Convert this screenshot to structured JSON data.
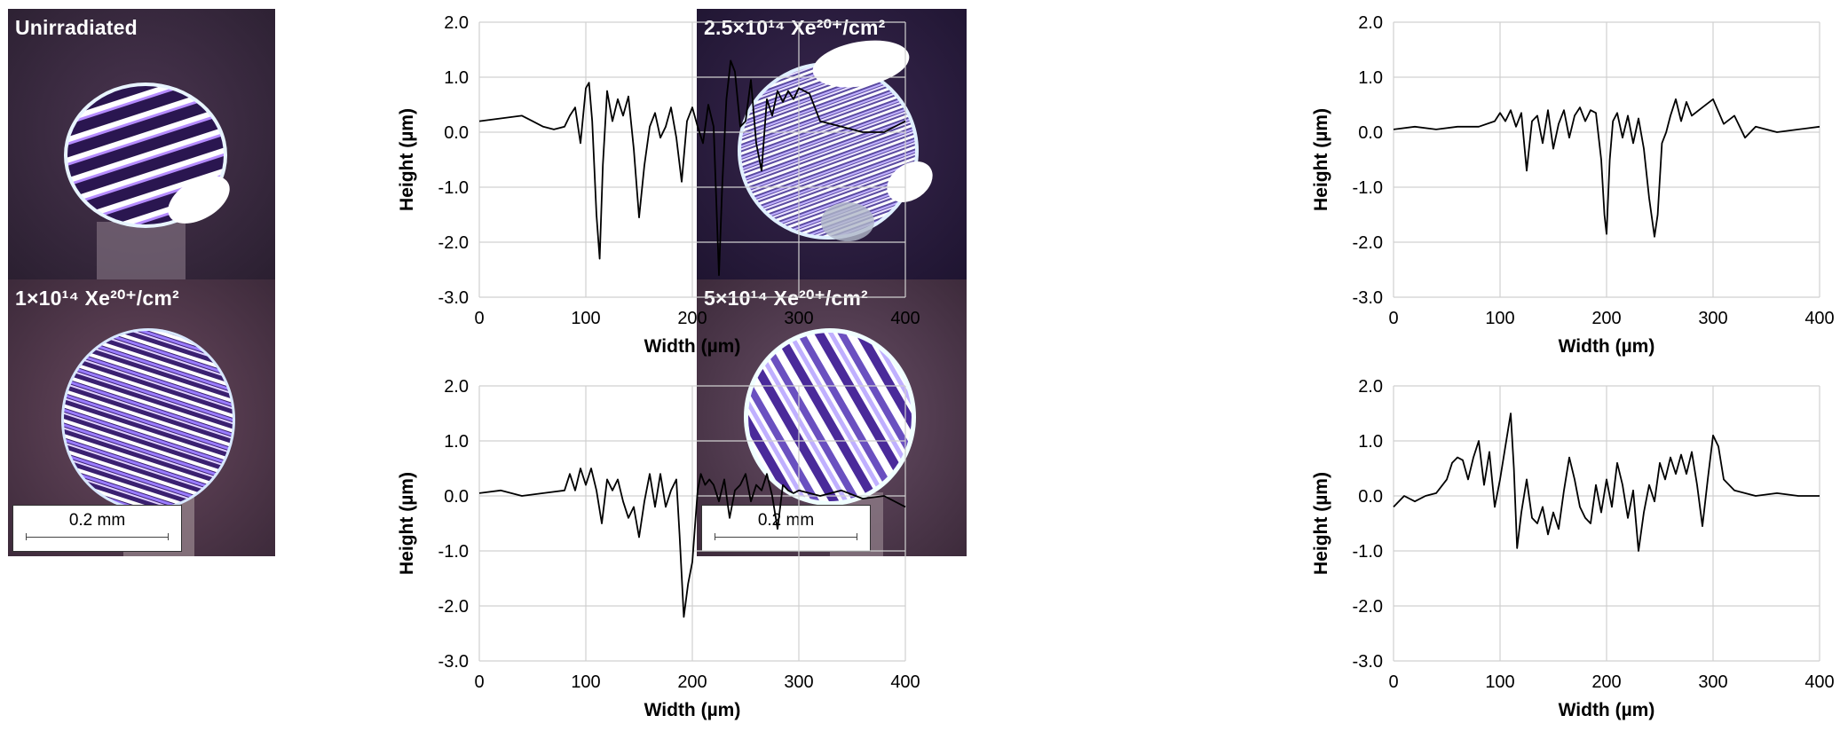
{
  "panels": [
    {
      "label": "Unirradiated",
      "scalebar": ""
    },
    {
      "label": "2.5×10¹⁴ Xe²⁰⁺/cm²",
      "scalebar": ""
    },
    {
      "label": "1×10¹⁴ Xe²⁰⁺/cm²",
      "scalebar": "0.2 mm"
    },
    {
      "label": "5×10¹⁴ Xe²⁰⁺/cm²",
      "scalebar": "0.2 mm"
    }
  ],
  "chart_data": [
    {
      "type": "line",
      "xlabel": "Width (µm)",
      "ylabel": "Height (µm)",
      "xlim": [
        0,
        400
      ],
      "ylim": [
        -3.0,
        2.0
      ],
      "xticks": [
        "0",
        "100",
        "200",
        "300",
        "400"
      ],
      "yticks": [
        "2.0",
        "1.0",
        "0.0",
        "-1.0",
        "-2.0",
        "-3.0"
      ],
      "grid": true,
      "series": [
        {
          "color": "#000000",
          "x": [
            0,
            20,
            40,
            50,
            60,
            70,
            80,
            85,
            90,
            95,
            100,
            103,
            106,
            110,
            113,
            116,
            120,
            125,
            130,
            135,
            140,
            145,
            150,
            155,
            160,
            165,
            170,
            175,
            180,
            185,
            190,
            195,
            200,
            205,
            210,
            215,
            220,
            225,
            228,
            232,
            236,
            240,
            245,
            250,
            255,
            260,
            265,
            270,
            275,
            280,
            285,
            290,
            295,
            300,
            310,
            320,
            340,
            360,
            380,
            400
          ],
          "y": [
            0.2,
            0.25,
            0.3,
            0.2,
            0.1,
            0.05,
            0.1,
            0.3,
            0.45,
            -0.2,
            0.8,
            0.9,
            0.2,
            -1.5,
            -2.3,
            -0.6,
            0.75,
            0.2,
            0.6,
            0.3,
            0.65,
            -0.3,
            -1.55,
            -0.6,
            0.1,
            0.35,
            -0.1,
            0.1,
            0.45,
            -0.1,
            -0.9,
            0.2,
            0.45,
            0.1,
            -0.2,
            0.5,
            0.1,
            -2.6,
            -1.0,
            0.6,
            1.3,
            1.1,
            0.1,
            0.2,
            0.95,
            -0.2,
            -0.7,
            0.6,
            0.3,
            0.75,
            0.55,
            0.75,
            0.6,
            0.8,
            0.7,
            0.2,
            0.1,
            0.0,
            0.0,
            0.2
          ]
        }
      ]
    },
    {
      "type": "line",
      "xlabel": "Width (µm)",
      "ylabel": "Height (µm)",
      "xlim": [
        0,
        400
      ],
      "ylim": [
        -3.0,
        2.0
      ],
      "xticks": [
        "0",
        "100",
        "200",
        "300",
        "400"
      ],
      "yticks": [
        "2.0",
        "1.0",
        "0.0",
        "-1.0",
        "-2.0",
        "-3.0"
      ],
      "grid": true,
      "series": [
        {
          "color": "#000000",
          "x": [
            0,
            20,
            40,
            60,
            80,
            95,
            100,
            105,
            110,
            115,
            120,
            125,
            130,
            135,
            140,
            145,
            150,
            155,
            160,
            165,
            170,
            175,
            180,
            185,
            190,
            195,
            198,
            200,
            203,
            206,
            210,
            215,
            220,
            225,
            230,
            235,
            240,
            245,
            248,
            252,
            256,
            260,
            265,
            270,
            275,
            280,
            290,
            300,
            310,
            320,
            330,
            340,
            360,
            380,
            400
          ],
          "y": [
            0.05,
            0.1,
            0.05,
            0.1,
            0.1,
            0.2,
            0.35,
            0.2,
            0.4,
            0.1,
            0.35,
            -0.7,
            0.2,
            0.3,
            -0.2,
            0.4,
            -0.3,
            0.15,
            0.4,
            -0.1,
            0.3,
            0.45,
            0.2,
            0.4,
            0.35,
            -0.5,
            -1.5,
            -1.85,
            -0.5,
            0.2,
            0.35,
            -0.1,
            0.3,
            -0.2,
            0.25,
            -0.3,
            -1.2,
            -1.9,
            -1.5,
            -0.2,
            0.0,
            0.3,
            0.6,
            0.2,
            0.55,
            0.3,
            0.45,
            0.6,
            0.15,
            0.3,
            -0.1,
            0.1,
            0.0,
            0.05,
            0.1
          ]
        }
      ]
    },
    {
      "type": "line",
      "xlabel": "Width (µm)",
      "ylabel": "Height (µm)",
      "xlim": [
        0,
        400
      ],
      "ylim": [
        -3.0,
        2.0
      ],
      "xticks": [
        "0",
        "100",
        "200",
        "300",
        "400"
      ],
      "yticks": [
        "2.0",
        "1.0",
        "0.0",
        "-1.0",
        "-2.0",
        "-3.0"
      ],
      "grid": true,
      "series": [
        {
          "color": "#000000",
          "x": [
            0,
            20,
            40,
            60,
            80,
            85,
            90,
            95,
            100,
            105,
            110,
            115,
            120,
            125,
            130,
            135,
            140,
            145,
            150,
            155,
            160,
            165,
            170,
            175,
            180,
            185,
            188,
            192,
            196,
            200,
            205,
            208,
            212,
            216,
            220,
            225,
            230,
            235,
            240,
            245,
            250,
            255,
            260,
            265,
            270,
            275,
            280,
            285,
            290,
            295,
            300,
            320,
            340,
            360,
            380,
            400
          ],
          "y": [
            0.05,
            0.1,
            0.0,
            0.05,
            0.1,
            0.4,
            0.1,
            0.5,
            0.2,
            0.5,
            0.1,
            -0.5,
            0.3,
            0.1,
            0.3,
            -0.1,
            -0.4,
            -0.2,
            -0.75,
            -0.1,
            0.4,
            -0.2,
            0.4,
            -0.2,
            0.1,
            0.3,
            -0.7,
            -2.2,
            -1.6,
            -1.2,
            0.1,
            0.4,
            0.2,
            0.3,
            0.2,
            -0.1,
            0.3,
            -0.4,
            0.1,
            0.2,
            0.4,
            -0.1,
            0.2,
            0.1,
            0.4,
            0.0,
            -0.6,
            0.2,
            0.1,
            0.05,
            0.1,
            0.0,
            0.1,
            -0.05,
            0.0,
            -0.2
          ]
        }
      ]
    },
    {
      "type": "line",
      "xlabel": "Width (µm)",
      "ylabel": "Height (µm)",
      "xlim": [
        0,
        400
      ],
      "ylim": [
        -3.0,
        2.0
      ],
      "xticks": [
        "0",
        "100",
        "200",
        "300",
        "400"
      ],
      "yticks": [
        "2.0",
        "1.0",
        "0.0",
        "-1.0",
        "-2.0",
        "-3.0"
      ],
      "grid": true,
      "series": [
        {
          "color": "#000000",
          "x": [
            0,
            10,
            20,
            30,
            40,
            50,
            55,
            60,
            65,
            70,
            75,
            80,
            85,
            90,
            95,
            100,
            105,
            110,
            113,
            116,
            120,
            125,
            130,
            135,
            140,
            145,
            150,
            155,
            160,
            165,
            170,
            175,
            180,
            185,
            190,
            195,
            200,
            205,
            210,
            215,
            220,
            225,
            230,
            235,
            240,
            245,
            250,
            255,
            260,
            265,
            270,
            275,
            280,
            285,
            290,
            295,
            300,
            305,
            310,
            320,
            340,
            360,
            380,
            400
          ],
          "y": [
            -0.2,
            0.0,
            -0.1,
            0.0,
            0.05,
            0.3,
            0.6,
            0.7,
            0.65,
            0.3,
            0.7,
            1.0,
            0.2,
            0.8,
            -0.2,
            0.3,
            0.9,
            1.5,
            0.5,
            -0.95,
            -0.3,
            0.3,
            -0.4,
            -0.5,
            -0.2,
            -0.7,
            -0.3,
            -0.6,
            0.1,
            0.7,
            0.3,
            -0.2,
            -0.4,
            -0.5,
            0.2,
            -0.3,
            0.3,
            -0.2,
            0.6,
            0.2,
            -0.4,
            0.1,
            -1.0,
            -0.3,
            0.2,
            -0.1,
            0.6,
            0.3,
            0.7,
            0.4,
            0.75,
            0.4,
            0.8,
            0.2,
            -0.55,
            0.3,
            1.1,
            0.9,
            0.3,
            0.1,
            0.0,
            0.05,
            0.0,
            0.0
          ]
        }
      ]
    }
  ]
}
